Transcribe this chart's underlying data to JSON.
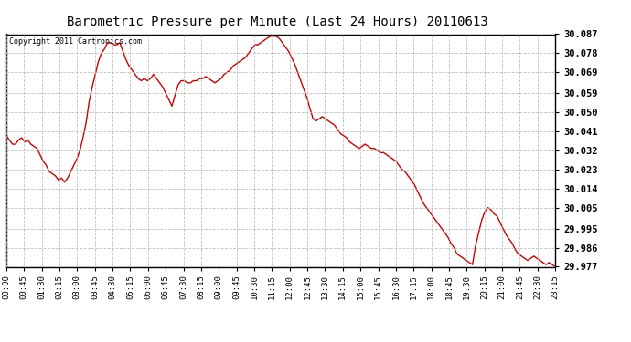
{
  "title": "Barometric Pressure per Minute (Last 24 Hours) 20110613",
  "copyright": "Copyright 2011 Cartronics.com",
  "line_color": "#cc0000",
  "bg_color": "#ffffff",
  "grid_color": "#bbbbbb",
  "ylim": [
    29.977,
    30.087
  ],
  "yticks": [
    29.977,
    29.986,
    29.995,
    30.005,
    30.014,
    30.023,
    30.032,
    30.041,
    30.05,
    30.059,
    30.069,
    30.078,
    30.087
  ],
  "xtick_labels": [
    "00:00",
    "00:45",
    "01:30",
    "02:15",
    "03:00",
    "03:45",
    "04:30",
    "05:15",
    "06:00",
    "06:45",
    "07:30",
    "08:15",
    "09:00",
    "09:45",
    "10:30",
    "11:15",
    "12:00",
    "12:45",
    "13:30",
    "14:15",
    "15:00",
    "15:45",
    "16:30",
    "17:15",
    "18:00",
    "18:45",
    "19:30",
    "20:15",
    "21:00",
    "21:45",
    "22:30",
    "23:15"
  ],
  "pressure_data": [
    30.039,
    30.037,
    30.035,
    30.035,
    30.037,
    30.038,
    30.036,
    30.037,
    30.035,
    30.034,
    30.033,
    30.03,
    30.027,
    30.025,
    30.022,
    30.021,
    30.02,
    30.018,
    30.019,
    30.017,
    30.019,
    30.022,
    30.025,
    30.028,
    30.032,
    30.038,
    30.045,
    30.055,
    30.062,
    30.068,
    30.074,
    30.078,
    30.08,
    30.083,
    30.083,
    30.082,
    30.082,
    30.083,
    30.079,
    30.075,
    30.072,
    30.07,
    30.068,
    30.066,
    30.065,
    30.066,
    30.065,
    30.066,
    30.068,
    30.066,
    30.064,
    30.062,
    30.059,
    30.056,
    30.053,
    30.058,
    30.063,
    30.065,
    30.065,
    30.064,
    30.064,
    30.065,
    30.065,
    30.066,
    30.066,
    30.067,
    30.066,
    30.065,
    30.064,
    30.065,
    30.066,
    30.068,
    30.069,
    30.07,
    30.072,
    30.073,
    30.074,
    30.075,
    30.076,
    30.078,
    30.08,
    30.082,
    30.082,
    30.083,
    30.084,
    30.085,
    30.086,
    30.086,
    30.086,
    30.085,
    30.083,
    30.081,
    30.079,
    30.076,
    30.073,
    30.069,
    30.065,
    30.061,
    30.057,
    30.052,
    30.047,
    30.046,
    30.047,
    30.048,
    30.047,
    30.046,
    30.045,
    30.044,
    30.042,
    30.04,
    30.039,
    30.038,
    30.036,
    30.035,
    30.034,
    30.033,
    30.034,
    30.035,
    30.034,
    30.033,
    30.033,
    30.032,
    30.031,
    30.031,
    30.03,
    30.029,
    30.028,
    30.027,
    30.025,
    30.023,
    30.022,
    30.02,
    30.018,
    30.016,
    30.013,
    30.01,
    30.007,
    30.005,
    30.003,
    30.001,
    29.999,
    29.997,
    29.995,
    29.993,
    29.991,
    29.988,
    29.986,
    29.983,
    29.982,
    29.981,
    29.98,
    29.979,
    29.978,
    29.987,
    29.993,
    29.999,
    30.003,
    30.005,
    30.004,
    30.002,
    30.001,
    29.998,
    29.995,
    29.992,
    29.99,
    29.988,
    29.985,
    29.983,
    29.982,
    29.981,
    29.98,
    29.981,
    29.982,
    29.981,
    29.98,
    29.979,
    29.978,
    29.979,
    29.978,
    29.977
  ]
}
